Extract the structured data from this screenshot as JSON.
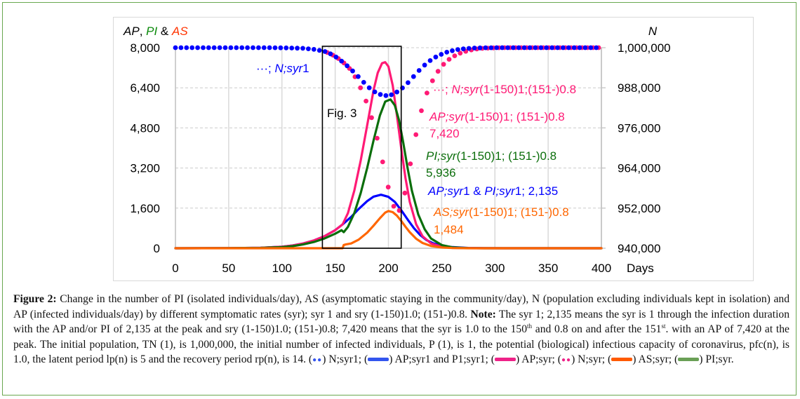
{
  "chart_data": {
    "type": "line",
    "title": "",
    "xlabel": "Days",
    "ylabel_left": [
      "AP",
      ", ",
      "PI",
      " & ",
      "AS"
    ],
    "ylabel_right": "N",
    "xlim": [
      0,
      400
    ],
    "ylim_left": [
      0,
      8000
    ],
    "ylim_right": [
      940000,
      1000000
    ],
    "x_ticks": [
      "0",
      "50",
      "100",
      "150",
      "200",
      "250",
      "300",
      "350",
      "400"
    ],
    "y_ticks_left": [
      "0",
      "1,600",
      "3,200",
      "4,800",
      "6,400",
      "8,000"
    ],
    "y_ticks_right": [
      "940,000",
      "952,000",
      "964,000",
      "976,000",
      "988,000",
      "1,000,000"
    ],
    "grid": true,
    "highlight_box": {
      "label": "Fig. 3",
      "x_range": [
        138,
        212
      ]
    },
    "series": [
      {
        "name": "N;syr1",
        "axis": "right",
        "style": "dots",
        "color": "#0000ff",
        "x": [
          0,
          10,
          20,
          30,
          40,
          50,
          60,
          70,
          80,
          90,
          100,
          110,
          120,
          130,
          140,
          146,
          152,
          158,
          164,
          170,
          176,
          182,
          188,
          194,
          200,
          206,
          212,
          218,
          224,
          230,
          236,
          242,
          248,
          254,
          260,
          266,
          272,
          278,
          284,
          290,
          300,
          310,
          320,
          330,
          340,
          350,
          360,
          370,
          380,
          390,
          400
        ],
        "y": [
          1000000,
          1000000,
          1000000,
          1000000,
          1000000,
          1000000,
          1000000,
          1000000,
          1000000,
          999990,
          999960,
          999900,
          999800,
          999500,
          998900,
          998100,
          997000,
          995500,
          993800,
          991900,
          989900,
          988000,
          986600,
          985800,
          985600,
          986300,
          987600,
          989400,
          991500,
          993600,
          995400,
          996800,
          997800,
          998600,
          999100,
          999500,
          999700,
          999850,
          999930,
          999970,
          1000000,
          1000000,
          1000000,
          1000000,
          1000000,
          1000000,
          1000000,
          1000000,
          1000000,
          1000000,
          1000000
        ]
      },
      {
        "name": "N;syr(1-150)1;(151-)0.8",
        "axis": "right",
        "style": "dots",
        "color": "#ff1a75",
        "x": [
          140,
          146,
          152,
          158,
          164,
          170,
          176,
          180,
          184,
          188,
          192,
          196,
          200,
          204,
          208,
          212,
          216,
          220,
          224,
          228,
          232,
          236,
          240,
          246,
          252,
          258,
          264,
          270,
          276,
          282,
          290,
          300,
          310,
          320,
          330,
          340,
          350,
          360,
          370,
          380,
          390,
          400
        ],
        "y": [
          998900,
          998100,
          997000,
          995500,
          993600,
          990600,
          986500,
          983200,
          979300,
          974700,
          969600,
          963800,
          958000,
          953300,
          950400,
          952000,
          957300,
          964200,
          971200,
          977400,
          982400,
          986300,
          989300,
          992700,
          995100,
          996800,
          997900,
          998700,
          999200,
          999600,
          999850,
          999950,
          1000000,
          1000000,
          1000000,
          1000000,
          1000000,
          1000000,
          1000000,
          1000000,
          1000000,
          1000000
        ]
      },
      {
        "name": "AP;syr1 & PI;syr1",
        "axis": "left",
        "style": "line",
        "color": "#0000ff",
        "peak_label": "2,135",
        "x": [
          0,
          50,
          80,
          100,
          110,
          120,
          130,
          140,
          150,
          157,
          165,
          172,
          180,
          186,
          193,
          200,
          206,
          212,
          218,
          224,
          230,
          236,
          242,
          250,
          260,
          275,
          290,
          310,
          400
        ],
        "y": [
          0,
          5,
          20,
          60,
          110,
          190,
          310,
          480,
          720,
          950,
          1250,
          1560,
          1880,
          2060,
          2135,
          2050,
          1850,
          1520,
          1150,
          800,
          520,
          320,
          200,
          100,
          45,
          12,
          3,
          0,
          0
        ]
      },
      {
        "name": "AP;syr(1-150)1; (151-)0.8",
        "axis": "left",
        "style": "line",
        "color": "#ff1a75",
        "peak_label": "7,420",
        "x": [
          0,
          50,
          80,
          100,
          110,
          120,
          130,
          140,
          150,
          157,
          162,
          168,
          174,
          180,
          186,
          190,
          194,
          197,
          200,
          204,
          208,
          212,
          216,
          220,
          226,
          232,
          240,
          250,
          260,
          275,
          290,
          310,
          400
        ],
        "y": [
          0,
          5,
          20,
          60,
          110,
          190,
          310,
          480,
          720,
          950,
          1400,
          2300,
          3500,
          4900,
          6300,
          7000,
          7380,
          7420,
          7250,
          6500,
          5300,
          4000,
          2800,
          1850,
          960,
          480,
          190,
          60,
          15,
          3,
          0,
          0,
          0
        ]
      },
      {
        "name": "PI;syr(1-150)1; (151-)0.8",
        "axis": "left",
        "style": "line",
        "color": "#0b6e0b",
        "peak_label": "5,936",
        "x": [
          0,
          50,
          80,
          100,
          110,
          120,
          130,
          140,
          150,
          156,
          158,
          162,
          168,
          174,
          180,
          186,
          192,
          197,
          202,
          206,
          210,
          214,
          218,
          222,
          228,
          234,
          240,
          250,
          260,
          275,
          290,
          310,
          400
        ],
        "y": [
          0,
          5,
          15,
          45,
          85,
          150,
          250,
          390,
          580,
          720,
          640,
          850,
          1400,
          2200,
          3200,
          4300,
          5300,
          5850,
          5936,
          5700,
          5100,
          4200,
          3200,
          2300,
          1350,
          760,
          390,
          130,
          35,
          6,
          0,
          0,
          0
        ]
      },
      {
        "name": "AS;syr(1-150)1; (151-)0.8",
        "axis": "left",
        "style": "line",
        "color": "#ff6600",
        "peak_label": "1,484",
        "x": [
          0,
          150,
          157,
          158,
          160,
          165,
          172,
          180,
          186,
          192,
          197,
          200,
          204,
          208,
          212,
          216,
          220,
          226,
          232,
          240,
          250,
          260,
          275,
          290,
          400
        ],
        "y": [
          0,
          0,
          0,
          130,
          150,
          190,
          340,
          620,
          900,
          1200,
          1420,
          1484,
          1440,
          1300,
          1090,
          860,
          640,
          380,
          210,
          90,
          30,
          8,
          1,
          0,
          0
        ]
      }
    ],
    "annotations": [
      {
        "text_parts": [
          "···; ",
          "N;syr",
          "1"
        ],
        "color": "#0000ff"
      },
      {
        "text_parts": [
          "···; ",
          "N;syr",
          "(1-150)1;(151-)0.8"
        ],
        "color": "#ff1a75"
      },
      {
        "text_parts": [
          "AP;syr",
          "(1-150)1; (151-)0.8"
        ],
        "value": "7,420",
        "color": "#ff1a75"
      },
      {
        "text_parts": [
          "PI;syr",
          "(1-150)1; (151-)0.8"
        ],
        "value": "5,936",
        "color": "#0b6e0b"
      },
      {
        "text_parts": [
          "AP;syr",
          "1 & ",
          "PI;syr",
          "1; 2,135"
        ],
        "color": "#0000ff"
      },
      {
        "text_parts": [
          "AS;syr",
          "(1-150)1; (151-)0.8"
        ],
        "value": "1,484",
        "color": "#ff6600"
      }
    ]
  },
  "caption": {
    "label": "Figure 2:",
    "text1": " Change in the number of PI (isolated individuals/day), AS (asymptomatic staying in the community/day), N (population excluding individuals kept in isolation) and AP (infected individuals/day) by different symptomatic rates (syr); syr 1 and sry (1-150)1.0; (151-)0.8. ",
    "note_label": "Note:",
    "text2": " The syr 1; 2,135 means the syr is 1 through the infection duration with the AP and/or PI of 2,135 at the peak and sry (1-150)1.0; (151-)0.8; 7,420 means that the syr is 1.0 to the 150",
    "sup1": "th",
    "text3": " and 0.8 on and after the 151",
    "sup2": "st",
    "text4": ". with an AP of 7,420 at the peak. The initial population, TN (1), is 1,000,000, the initial number of infected individuals, P (1), is 1, the potential (biological) infectious capacity of coronavirus, pfc(n), is 1.0, the latent period lp(n) is 5 and the recovery period rp(n), is 14. ",
    "legend": [
      {
        "swatch": "dots",
        "color": "#3355ee",
        "label": "N;syr1; "
      },
      {
        "swatch": "line",
        "color": "#3355ee",
        "label": "AP;syr1 and P1;syr1; "
      },
      {
        "swatch": "line",
        "color": "#ee2288",
        "label": "AP;syr; "
      },
      {
        "swatch": "dots",
        "color": "#ee2288",
        "label": "N;syr; "
      },
      {
        "swatch": "line",
        "color": "#ff5a00",
        "label": "AS;syr; "
      },
      {
        "swatch": "line",
        "color": "#6aa056",
        "label": "PI;syr."
      }
    ]
  }
}
